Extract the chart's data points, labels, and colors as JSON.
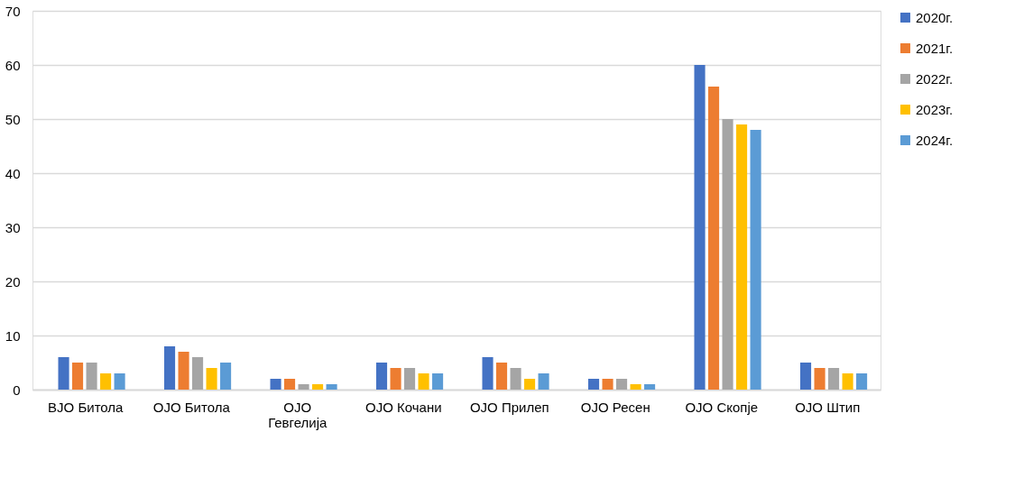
{
  "chart_data": {
    "type": "bar",
    "categories": [
      "BJO Битола",
      "OJO Битола",
      "OJO Гевгелија",
      "OJO Кочани",
      "OJO Прилеп",
      "OJO Ресен",
      "OJO Скопје",
      "OJO Штип"
    ],
    "series": [
      {
        "name": "2020г.",
        "color": "#4472c4",
        "values": [
          6,
          8,
          2,
          5,
          6,
          2,
          60,
          5
        ]
      },
      {
        "name": "2021г.",
        "color": "#ed7d31",
        "values": [
          5,
          7,
          2,
          4,
          5,
          2,
          56,
          4
        ]
      },
      {
        "name": "2022г.",
        "color": "#a5a5a5",
        "values": [
          5,
          6,
          1,
          4,
          4,
          2,
          50,
          4
        ]
      },
      {
        "name": "2023г.",
        "color": "#ffc000",
        "values": [
          3,
          4,
          1,
          3,
          2,
          1,
          49,
          3
        ]
      },
      {
        "name": "2024г.",
        "color": "#5b9bd5",
        "values": [
          3,
          5,
          1,
          3,
          3,
          1,
          48,
          3
        ]
      }
    ],
    "ylim": [
      0,
      70
    ],
    "yticks": [
      0,
      10,
      20,
      30,
      40,
      50,
      60,
      70
    ],
    "grid": "y",
    "legend": "right"
  }
}
